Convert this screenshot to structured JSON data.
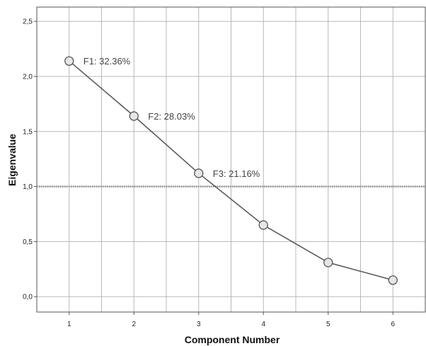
{
  "chart_data": {
    "type": "line",
    "title": "",
    "xlabel": "Component Number",
    "ylabel": "Eigenvalue",
    "x": [
      1,
      2,
      3,
      4,
      5,
      6
    ],
    "x_tick_labels": [
      "1",
      "2",
      "3",
      "4",
      "5",
      "6"
    ],
    "xlim": [
      0.5,
      6.5
    ],
    "y_ticks": [
      0.0,
      0.5,
      1.0,
      1.5,
      2.0,
      2.5
    ],
    "y_tick_labels": [
      "0,0",
      "0,5",
      "1,0",
      "1,5",
      "2,0",
      "2,5"
    ],
    "ylim": [
      -0.14,
      2.63
    ],
    "series": [
      {
        "values": [
          2.14,
          1.64,
          1.12,
          0.65,
          0.31,
          0.15
        ]
      }
    ],
    "point_annotations": [
      {
        "x": 1,
        "text": "F1: 32.36%"
      },
      {
        "x": 2,
        "text": "F2: 28.03%"
      },
      {
        "x": 3,
        "text": "F3: 21.16%"
      }
    ],
    "reference_line": {
      "y": 1.0,
      "style": "dotted"
    },
    "grid": true,
    "colors": {
      "line": "#555555",
      "marker_fill": "#e6e6e6",
      "marker_stroke": "#555555",
      "grid": "#b8b8b8",
      "reference_line": "#9a9a9a",
      "axis": "#555555"
    }
  }
}
